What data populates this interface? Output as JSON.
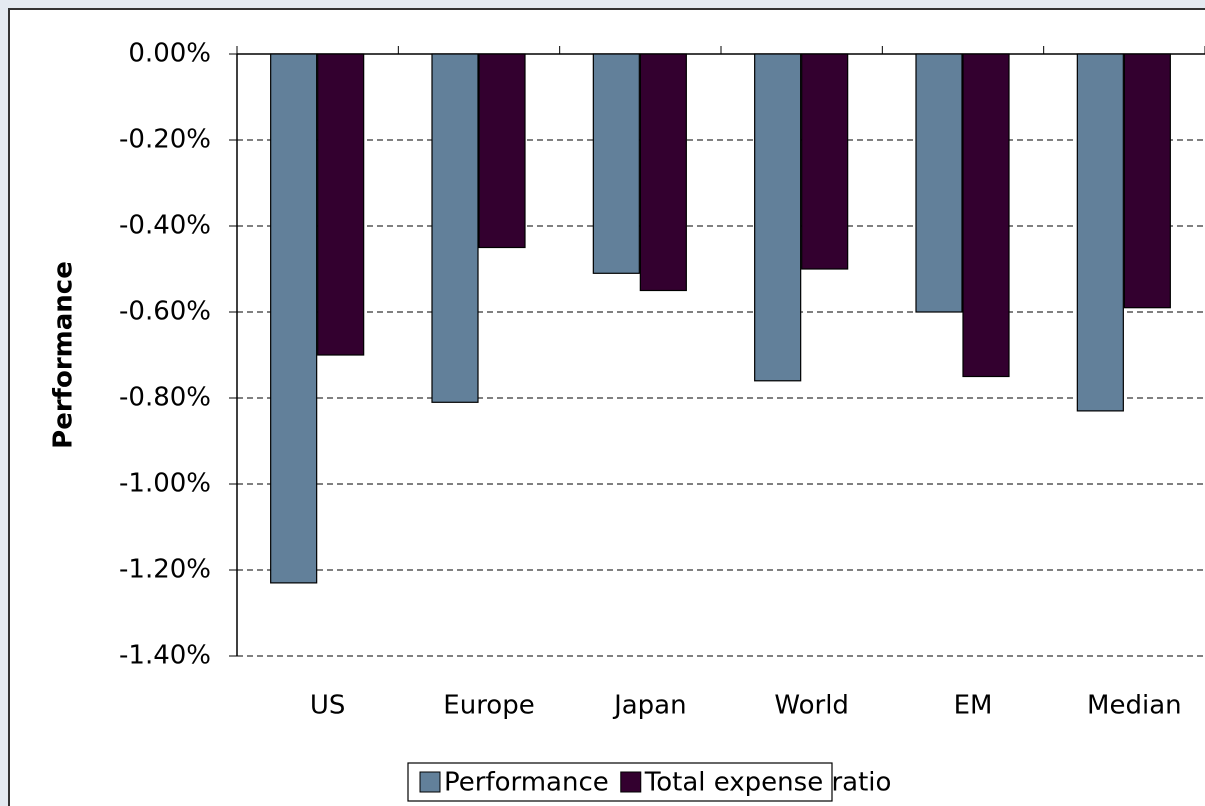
{
  "chart_data": {
    "type": "bar",
    "y_label": "Performance",
    "categories": [
      "US",
      "Europe",
      "Japan",
      "World",
      "EM",
      "Median"
    ],
    "series": [
      {
        "name": "Performance",
        "color": "#62809a",
        "values": [
          -1.23,
          -0.81,
          -0.51,
          -0.76,
          -0.6,
          -0.83
        ]
      },
      {
        "name": "Total expense ratio",
        "color": "#33002f",
        "values": [
          -0.7,
          -0.45,
          -0.55,
          -0.5,
          -0.75,
          -0.59
        ]
      }
    ],
    "ylim": [
      -1.4,
      0
    ],
    "yticks": [
      {
        "value": 0,
        "label": "0.00%"
      },
      {
        "value": -0.2,
        "label": "-0.20%"
      },
      {
        "value": -0.4,
        "label": "-0.40%"
      },
      {
        "value": -0.6,
        "label": "-0.60%"
      },
      {
        "value": -0.8,
        "label": "-0.80%"
      },
      {
        "value": -1.0,
        "label": "-1.00%"
      },
      {
        "value": -1.2,
        "label": "-1.20%"
      },
      {
        "value": -1.4,
        "label": "-1.40%"
      }
    ],
    "grid": true,
    "legend": "bottom"
  }
}
